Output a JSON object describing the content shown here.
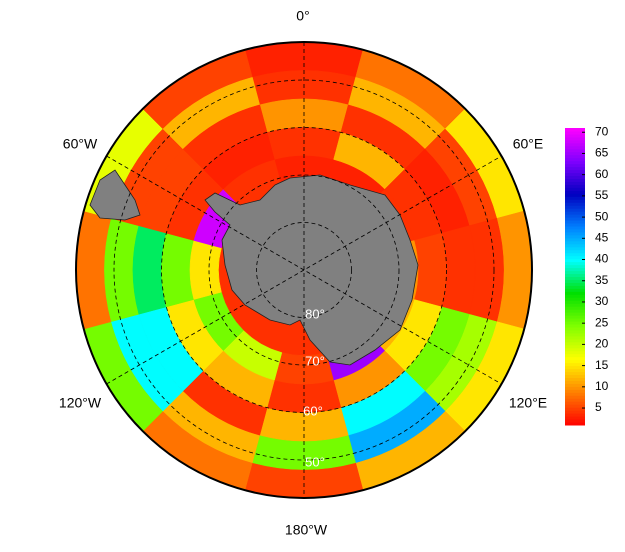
{
  "map": {
    "longitude_labels": [
      "0°",
      "60°E",
      "120°E",
      "180°W",
      "120°W",
      "60°W"
    ],
    "latitude_labels": [
      "80°",
      "70°",
      "60°",
      "50°"
    ],
    "field": [
      [
        3,
        8,
        15,
        10,
        15,
        12,
        5,
        8,
        25,
        8,
        18,
        5
      ],
      [
        4,
        12,
        5,
        4,
        22,
        45,
        25,
        12,
        40,
        25,
        5,
        12
      ],
      [
        10,
        4,
        3,
        4,
        25,
        40,
        12,
        4,
        40,
        35,
        5,
        4
      ],
      [
        4,
        12,
        4,
        5,
        15,
        10,
        4,
        12,
        15,
        25,
        4,
        3
      ],
      [
        3,
        3,
        4,
        10,
        12,
        65,
        5,
        20,
        25,
        15,
        68,
        4
      ]
    ]
  },
  "colorbar": {
    "lim": [
      1,
      71
    ],
    "ticks": [
      5,
      10,
      15,
      20,
      25,
      30,
      35,
      40,
      45,
      50,
      55,
      60,
      65,
      70
    ],
    "colormap": [
      "#ff0000",
      "#ff8000",
      "#ffff00",
      "#80ff00",
      "#00e000",
      "#00ffff",
      "#0080ff",
      "#0000c0",
      "#8000ff",
      "#ff00ff"
    ]
  }
}
